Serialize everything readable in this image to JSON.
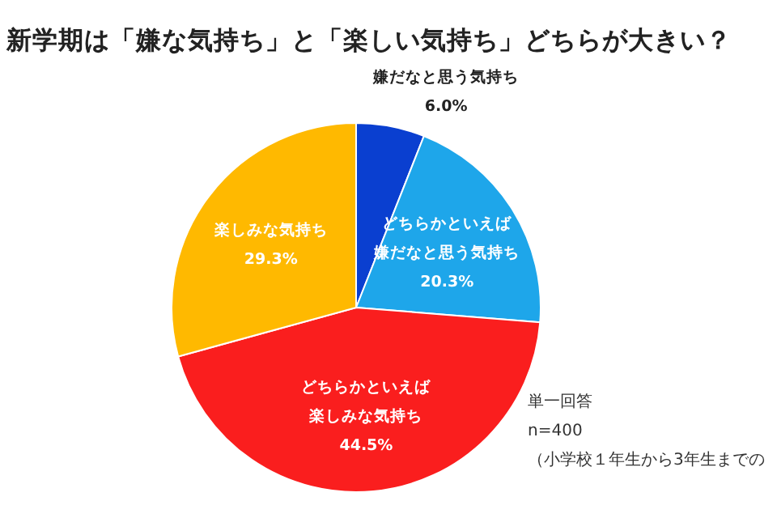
{
  "chart_data": {
    "type": "pie",
    "title": "新学期は「嫌な気持ち」と「楽しい気持ち」どちらが大きい？",
    "categories": [
      "嫌だなと思う気持ち",
      "どちらかといえば嫌だなと思う気持ち",
      "どちらかといえば楽しみな気持ち",
      "楽しみな気持ち"
    ],
    "values": [
      6.0,
      20.3,
      44.5,
      29.3
    ],
    "value_labels": [
      "6.0%",
      "20.3%",
      "44.5%",
      "29.3%"
    ],
    "colors": [
      "#0a3fd0",
      "#1ea6ea",
      "#fa1e1e",
      "#ffb900"
    ],
    "annotations": [
      "単一回答",
      "n=400",
      "（小学校１年生から3年生までの"
    ]
  }
}
